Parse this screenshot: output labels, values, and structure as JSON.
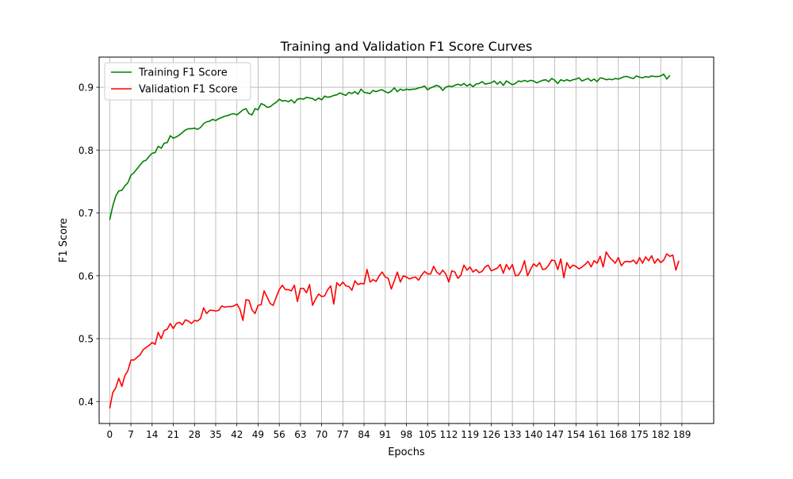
{
  "chart_data": {
    "type": "line",
    "title": "Training and Validation F1 Score Curves",
    "xlabel": "Epochs",
    "ylabel": "F1 Score",
    "xlim": [
      -3.5,
      199.5
    ],
    "ylim": [
      0.365,
      0.948
    ],
    "grid": true,
    "legend_position": "top-left",
    "xticks": [
      0,
      7,
      14,
      21,
      28,
      35,
      42,
      49,
      56,
      63,
      70,
      77,
      84,
      91,
      98,
      105,
      112,
      119,
      126,
      133,
      140,
      147,
      154,
      161,
      168,
      175,
      182,
      189
    ],
    "yticks": [
      0.4,
      0.5,
      0.6,
      0.7,
      0.8,
      0.9
    ],
    "series": [
      {
        "name": "Training F1 Score",
        "color": "#008000",
        "x_start": 0,
        "x_step": 1,
        "values": [
          0.689,
          0.711,
          0.727,
          0.735,
          0.736,
          0.743,
          0.748,
          0.76,
          0.764,
          0.77,
          0.776,
          0.782,
          0.784,
          0.79,
          0.795,
          0.796,
          0.806,
          0.803,
          0.811,
          0.812,
          0.823,
          0.819,
          0.821,
          0.824,
          0.828,
          0.832,
          0.834,
          0.834,
          0.835,
          0.833,
          0.836,
          0.842,
          0.845,
          0.846,
          0.849,
          0.847,
          0.85,
          0.852,
          0.854,
          0.855,
          0.857,
          0.858,
          0.856,
          0.86,
          0.864,
          0.866,
          0.858,
          0.856,
          0.866,
          0.864,
          0.874,
          0.872,
          0.868,
          0.869,
          0.873,
          0.876,
          0.881,
          0.878,
          0.879,
          0.877,
          0.88,
          0.875,
          0.881,
          0.882,
          0.881,
          0.884,
          0.883,
          0.882,
          0.879,
          0.883,
          0.88,
          0.886,
          0.884,
          0.885,
          0.887,
          0.888,
          0.891,
          0.889,
          0.887,
          0.892,
          0.89,
          0.893,
          0.889,
          0.897,
          0.892,
          0.891,
          0.89,
          0.895,
          0.893,
          0.895,
          0.896,
          0.893,
          0.891,
          0.894,
          0.899,
          0.893,
          0.897,
          0.895,
          0.897,
          0.896,
          0.897,
          0.897,
          0.899,
          0.9,
          0.902,
          0.896,
          0.899,
          0.901,
          0.903,
          0.901,
          0.895,
          0.9,
          0.902,
          0.901,
          0.903,
          0.905,
          0.903,
          0.906,
          0.902,
          0.905,
          0.901,
          0.905,
          0.906,
          0.909,
          0.905,
          0.906,
          0.907,
          0.91,
          0.905,
          0.909,
          0.903,
          0.91,
          0.907,
          0.904,
          0.906,
          0.91,
          0.909,
          0.911,
          0.909,
          0.911,
          0.91,
          0.907,
          0.909,
          0.911,
          0.912,
          0.909,
          0.914,
          0.911,
          0.906,
          0.912,
          0.91,
          0.912,
          0.91,
          0.912,
          0.913,
          0.915,
          0.91,
          0.912,
          0.914,
          0.91,
          0.913,
          0.909,
          0.915,
          0.914,
          0.912,
          0.913,
          0.912,
          0.914,
          0.913,
          0.915,
          0.917,
          0.917,
          0.915,
          0.914,
          0.918,
          0.916,
          0.915,
          0.917,
          0.916,
          0.918,
          0.917,
          0.917,
          0.918,
          0.921,
          0.913,
          0.919
        ]
      },
      {
        "name": "Validation F1 Score",
        "color": "#ff0000",
        "x_start": 0,
        "x_step": 1,
        "values": [
          0.389,
          0.414,
          0.422,
          0.437,
          0.424,
          0.441,
          0.449,
          0.466,
          0.466,
          0.47,
          0.474,
          0.482,
          0.486,
          0.489,
          0.494,
          0.491,
          0.51,
          0.5,
          0.513,
          0.515,
          0.524,
          0.516,
          0.524,
          0.526,
          0.522,
          0.53,
          0.528,
          0.524,
          0.529,
          0.528,
          0.532,
          0.549,
          0.54,
          0.545,
          0.545,
          0.544,
          0.545,
          0.552,
          0.55,
          0.551,
          0.551,
          0.552,
          0.555,
          0.547,
          0.529,
          0.562,
          0.561,
          0.546,
          0.54,
          0.553,
          0.554,
          0.576,
          0.566,
          0.556,
          0.553,
          0.566,
          0.578,
          0.585,
          0.578,
          0.578,
          0.576,
          0.585,
          0.559,
          0.58,
          0.58,
          0.573,
          0.586,
          0.553,
          0.563,
          0.571,
          0.567,
          0.568,
          0.578,
          0.584,
          0.555,
          0.589,
          0.584,
          0.59,
          0.584,
          0.583,
          0.577,
          0.592,
          0.586,
          0.588,
          0.587,
          0.61,
          0.59,
          0.594,
          0.591,
          0.6,
          0.606,
          0.598,
          0.596,
          0.579,
          0.592,
          0.606,
          0.59,
          0.6,
          0.598,
          0.595,
          0.597,
          0.598,
          0.593,
          0.601,
          0.607,
          0.603,
          0.603,
          0.615,
          0.606,
          0.602,
          0.609,
          0.603,
          0.59,
          0.608,
          0.606,
          0.596,
          0.601,
          0.617,
          0.609,
          0.614,
          0.606,
          0.61,
          0.605,
          0.607,
          0.614,
          0.617,
          0.608,
          0.61,
          0.612,
          0.618,
          0.604,
          0.618,
          0.61,
          0.618,
          0.6,
          0.601,
          0.609,
          0.624,
          0.6,
          0.61,
          0.619,
          0.615,
          0.621,
          0.61,
          0.611,
          0.617,
          0.625,
          0.624,
          0.61,
          0.627,
          0.597,
          0.621,
          0.612,
          0.617,
          0.615,
          0.611,
          0.614,
          0.618,
          0.623,
          0.614,
          0.624,
          0.62,
          0.631,
          0.614,
          0.638,
          0.63,
          0.625,
          0.62,
          0.629,
          0.616,
          0.622,
          0.623,
          0.622,
          0.625,
          0.619,
          0.629,
          0.62,
          0.63,
          0.624,
          0.632,
          0.62,
          0.627,
          0.621,
          0.625,
          0.635,
          0.631,
          0.633,
          0.609,
          0.624
        ]
      }
    ]
  }
}
